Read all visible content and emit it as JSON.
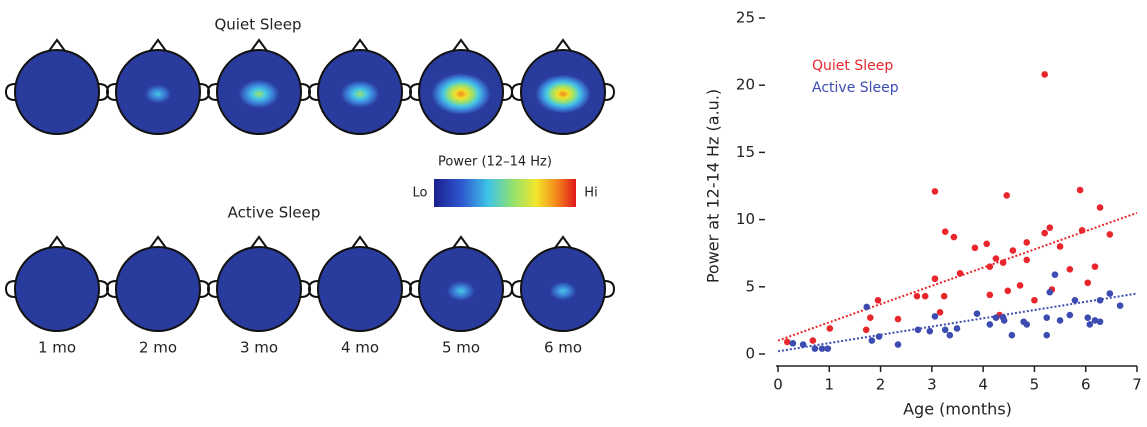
{
  "topomaps": {
    "rows": [
      "Quiet Sleep",
      "Active Sleep"
    ],
    "months": [
      "1 mo",
      "2 mo",
      "3 mo",
      "4 mo",
      "5 mo",
      "6 mo"
    ],
    "colorbar": {
      "title": "Power (12–14 Hz)",
      "low": "Lo",
      "high": "Hi"
    }
  },
  "chart_data": {
    "type": "scatter",
    "xlabel": "Age (months)",
    "ylabel": "Power at 12-14 Hz (a.u.)",
    "xlim": [
      0,
      7
    ],
    "xticks": [
      0,
      1,
      2,
      3,
      4,
      5,
      6,
      7
    ],
    "ylim": [
      0,
      25
    ],
    "yticks": [
      0,
      5,
      10,
      15,
      20,
      25
    ],
    "legend": "upper left",
    "series": [
      {
        "name": "Quiet Sleep",
        "color": "#e8262b",
        "x": [
          0.18,
          0.68,
          1.01,
          1.72,
          1.95,
          1.8,
          2.34,
          2.71,
          2.87,
          3.06,
          3.06,
          3.26,
          3.43,
          3.24,
          3.55,
          3.84,
          4.07,
          4.13,
          4.25,
          4.39,
          4.46,
          4.48,
          4.58,
          4.72,
          4.85,
          4.85,
          5.2,
          5.3,
          5.2,
          5.34,
          5.5,
          5.69,
          5.89,
          5.93,
          6.04,
          6.18,
          6.28,
          6.47,
          5.0,
          4.32,
          4.13,
          3.16
        ],
        "values": [
          0.9,
          1.0,
          1.9,
          1.8,
          4.0,
          2.7,
          2.6,
          4.3,
          4.3,
          12.1,
          5.6,
          9.1,
          8.7,
          4.3,
          6.0,
          7.9,
          8.2,
          6.5,
          7.1,
          6.8,
          11.8,
          4.7,
          7.7,
          5.1,
          8.3,
          7.0,
          9.0,
          9.4,
          20.8,
          4.8,
          8.0,
          6.3,
          12.2,
          9.2,
          5.3,
          6.5,
          10.9,
          8.9,
          4.0,
          2.9,
          4.4,
          3.1
        ],
        "trend": {
          "x": [
            0,
            7
          ],
          "values": [
            1.0,
            10.5
          ]
        }
      },
      {
        "name": "Active Sleep",
        "color": "#3d4cb0",
        "x": [
          0.29,
          0.49,
          0.72,
          0.86,
          0.97,
          1.73,
          1.83,
          1.97,
          2.34,
          2.73,
          2.96,
          3.06,
          3.26,
          3.35,
          3.49,
          3.88,
          4.13,
          4.25,
          4.41,
          4.56,
          4.39,
          4.79,
          4.85,
          5.24,
          5.24,
          5.4,
          5.3,
          5.69,
          5.79,
          6.04,
          6.08,
          6.18,
          6.28,
          6.47,
          6.67,
          6.28,
          5.5
        ],
        "values": [
          0.8,
          0.7,
          0.4,
          0.4,
          0.4,
          3.5,
          1.0,
          1.3,
          0.7,
          1.8,
          1.7,
          2.8,
          1.8,
          1.4,
          1.9,
          3.0,
          2.2,
          2.7,
          2.5,
          1.4,
          2.7,
          2.4,
          2.2,
          2.7,
          1.4,
          5.9,
          4.6,
          2.9,
          4.0,
          2.7,
          2.2,
          2.5,
          2.4,
          4.5,
          3.6,
          4.0,
          2.5
        ],
        "trend": {
          "x": [
            0,
            7
          ],
          "values": [
            0.2,
            4.5
          ]
        }
      }
    ]
  }
}
